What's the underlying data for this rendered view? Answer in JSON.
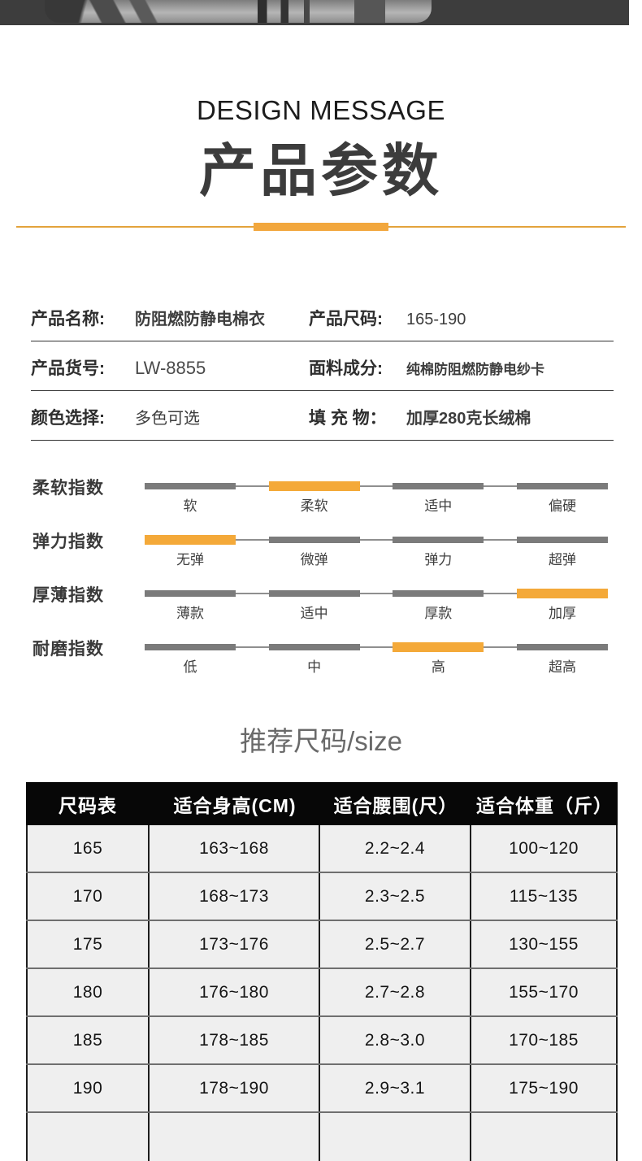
{
  "colors": {
    "accent_orange": "#f4a939",
    "divider_orange": "#e3a33b",
    "hero_band": "#3d3d3d",
    "slider_gray": "#7b7b7b",
    "table_header_bg": "#070707",
    "table_body_bg": "#efefef",
    "title_gray": "#3c3c3c"
  },
  "header": {
    "subtitle": "DESIGN MESSAGE",
    "title": "产品参数"
  },
  "info": {
    "rows": [
      {
        "left_label": "产品名称:",
        "left_value": "防阻燃防静电棉衣",
        "right_label": "产品尺码:",
        "right_value": "165-190"
      },
      {
        "left_label": "产品货号:",
        "left_value": "LW-8855",
        "right_label": "面料成分:",
        "right_value": "纯棉防阻燃防静电纱卡"
      },
      {
        "left_label": "颜色选择:",
        "left_value": "多色可选",
        "right_label": "填 充 物：",
        "right_value": "加厚280克长绒棉"
      }
    ]
  },
  "indexes": {
    "rows": [
      {
        "label": "柔软指数",
        "options": [
          "软",
          "柔软",
          "适中",
          "偏硬"
        ],
        "active": 1
      },
      {
        "label": "弹力指数",
        "options": [
          "无弹",
          "微弹",
          "弹力",
          "超弹"
        ],
        "active": 0
      },
      {
        "label": "厚薄指数",
        "options": [
          "薄款",
          "适中",
          "厚款",
          "加厚"
        ],
        "active": 3
      },
      {
        "label": "耐磨指数",
        "options": [
          "低",
          "中",
          "高",
          "超高"
        ],
        "active": 2
      }
    ]
  },
  "size_section": {
    "heading": "推荐尺码/size",
    "table": {
      "headers": [
        "尺码表",
        "适合身高(CM)",
        "适合腰围(尺）",
        "适合体重（斤）"
      ],
      "rows": [
        [
          "165",
          "163~168",
          "2.2~2.4",
          "100~120"
        ],
        [
          "170",
          "168~173",
          "2.3~2.5",
          "115~135"
        ],
        [
          "175",
          "173~176",
          "2.5~2.7",
          "130~155"
        ],
        [
          "180",
          "176~180",
          "2.7~2.8",
          "155~170"
        ],
        [
          "185",
          "178~185",
          "2.8~3.0",
          "170~185"
        ],
        [
          "190",
          "178~190",
          "2.9~3.1",
          "175~190"
        ],
        [
          "",
          "",
          "",
          ""
        ],
        [
          "",
          "",
          "",
          ""
        ]
      ]
    }
  }
}
